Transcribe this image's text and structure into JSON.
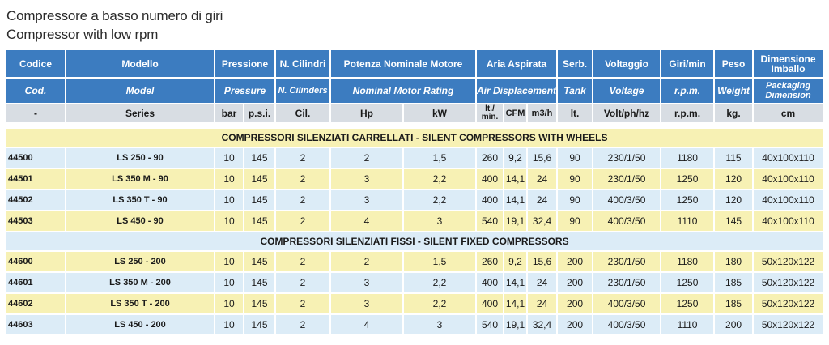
{
  "title_it": "Compressore a basso numero di giri",
  "title_en": "Compressor with low rpm",
  "headers": {
    "row1": [
      "Codice",
      "Modello",
      "Pressione",
      "N. Cilindri",
      "Potenza Nominale Motore",
      "Aria Aspirata",
      "Serb.",
      "Voltaggio",
      "Giri/min",
      "Peso",
      "Dimensione Imballo"
    ],
    "row2": [
      "Cod.",
      "Model",
      "Pressure",
      "N. Cilinders",
      "Nominal Motor Rating",
      "Air Displacement",
      "Tank",
      "Voltage",
      "r.p.m.",
      "Weight",
      "Packaging Dimension"
    ],
    "row3": [
      "-",
      "Series",
      "bar",
      "p.s.i.",
      "Cil.",
      "Hp",
      "kW",
      "lt./ min.",
      "CFM",
      "m3/h",
      "lt.",
      "Volt/ph/hz",
      "r.p.m.",
      "kg.",
      "cm"
    ]
  },
  "sections": [
    {
      "title": "COMPRESSORI SILENZIATI CARRELLATI - SILENT COMPRESSORS WITH WHEELS",
      "rows": [
        [
          "44500",
          "LS 250 - 90",
          "10",
          "145",
          "2",
          "2",
          "1,5",
          "260",
          "9,2",
          "15,6",
          "90",
          "230/1/50",
          "1180",
          "115",
          "40x100x110"
        ],
        [
          "44501",
          "LS 350 M - 90",
          "10",
          "145",
          "2",
          "3",
          "2,2",
          "400",
          "14,1",
          "24",
          "90",
          "230/1/50",
          "1250",
          "120",
          "40x100x110"
        ],
        [
          "44502",
          "LS 350 T - 90",
          "10",
          "145",
          "2",
          "3",
          "2,2",
          "400",
          "14,1",
          "24",
          "90",
          "400/3/50",
          "1250",
          "120",
          "40x100x110"
        ],
        [
          "44503",
          "LS 450 - 90",
          "10",
          "145",
          "2",
          "4",
          "3",
          "540",
          "19,1",
          "32,4",
          "90",
          "400/3/50",
          "1110",
          "145",
          "40x100x110"
        ]
      ]
    },
    {
      "title": "COMPRESSORI SILENZIATI FISSI - SILENT FIXED COMPRESSORS",
      "rows": [
        [
          "44600",
          "LS 250 - 200",
          "10",
          "145",
          "2",
          "2",
          "1,5",
          "260",
          "9,2",
          "15,6",
          "200",
          "230/1/50",
          "1180",
          "180",
          "50x120x122"
        ],
        [
          "44601",
          "LS 350 M - 200",
          "10",
          "145",
          "2",
          "3",
          "2,2",
          "400",
          "14,1",
          "24",
          "200",
          "230/1/50",
          "1250",
          "185",
          "50x120x122"
        ],
        [
          "44602",
          "LS 350 T - 200",
          "10",
          "145",
          "2",
          "3",
          "2,2",
          "400",
          "14,1",
          "24",
          "200",
          "400/3/50",
          "1250",
          "185",
          "50x120x122"
        ],
        [
          "44603",
          "LS 450 - 200",
          "10",
          "145",
          "2",
          "4",
          "3",
          "540",
          "19,1",
          "32,4",
          "200",
          "400/3/50",
          "1110",
          "200",
          "50x120x122"
        ]
      ]
    }
  ],
  "colors": {
    "header_blue": "#3c7cc0",
    "row_yellow": "#f7f1b4",
    "row_blue": "#dcecf7",
    "subheader_gray": "#d8dde3"
  }
}
